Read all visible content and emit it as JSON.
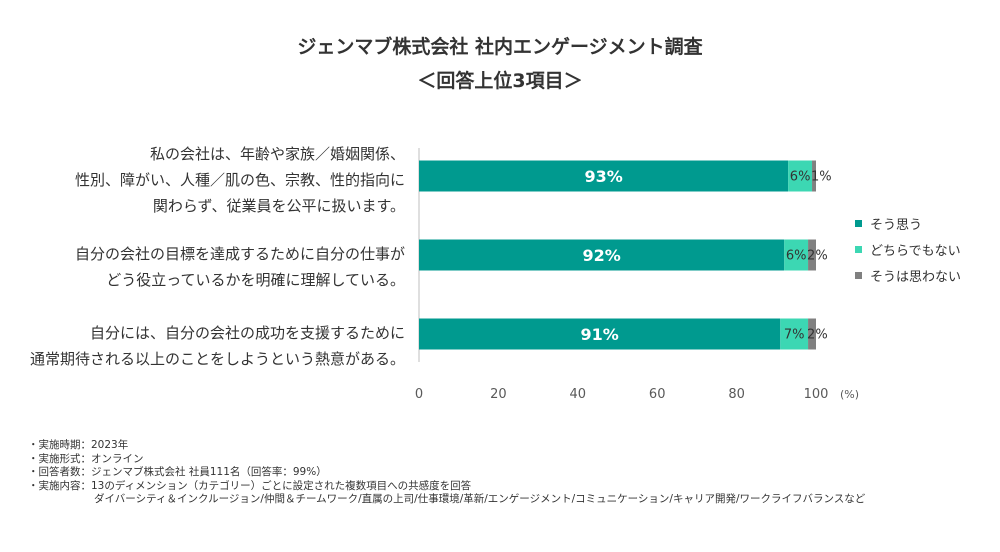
{
  "chart_data": {
    "type": "bar",
    "orientation": "horizontal",
    "stacked": true,
    "title": "ジェンマブ株式会社 社内エンゲージメント調査",
    "subtitle": "＜回答上位3項目＞",
    "categories": [
      [
        "私の会社は、年齢や家族／婚姻関係、",
        "性別、障がい、人種／肌の色、宗教、性的指向に",
        "関わらず、従業員を公平に扱います。"
      ],
      [
        "自分の会社の目標を達成するために自分の仕事が",
        "どう役立っているかを明確に理解している。"
      ],
      [
        "自分には、自分の会社の成功を支援するために",
        "通常期待される以上のことをしようという熱意がある。"
      ]
    ],
    "series": [
      {
        "name": "そう思う",
        "values": [
          93,
          92,
          91
        ],
        "labels": [
          "93%",
          "92%",
          "91%"
        ],
        "color": "#009a8f"
      },
      {
        "name": "どちらでもない",
        "values": [
          6,
          6,
          7
        ],
        "labels": [
          "6%",
          "6%",
          "7%"
        ],
        "color": "#3cd7b3"
      },
      {
        "name": "そうは思わない",
        "values": [
          1,
          2,
          2
        ],
        "labels": [
          "1%",
          "2%",
          "2%"
        ],
        "color": "#808080"
      }
    ],
    "xlim": [
      0,
      100
    ],
    "xticks": [
      0,
      20,
      40,
      60,
      80,
      100
    ],
    "xunit": "(%)",
    "grid": false,
    "legend": "right"
  },
  "notes": [
    "・実施時期：2023年",
    "・実施形式：オンライン",
    "・回答者数：ジェンマブ株式会社 社員111名（回答率：99%）",
    "・実施内容：13のディメンション（カテゴリー）ごとに設定された複数項目への共感度を回答",
    "ダイバーシティ＆インクルージョン/仲間＆チームワーク/直属の上司/仕事環境/革新/エンゲージメント/コミュニケーション/キャリア開発/ワークライフバランスなど"
  ]
}
